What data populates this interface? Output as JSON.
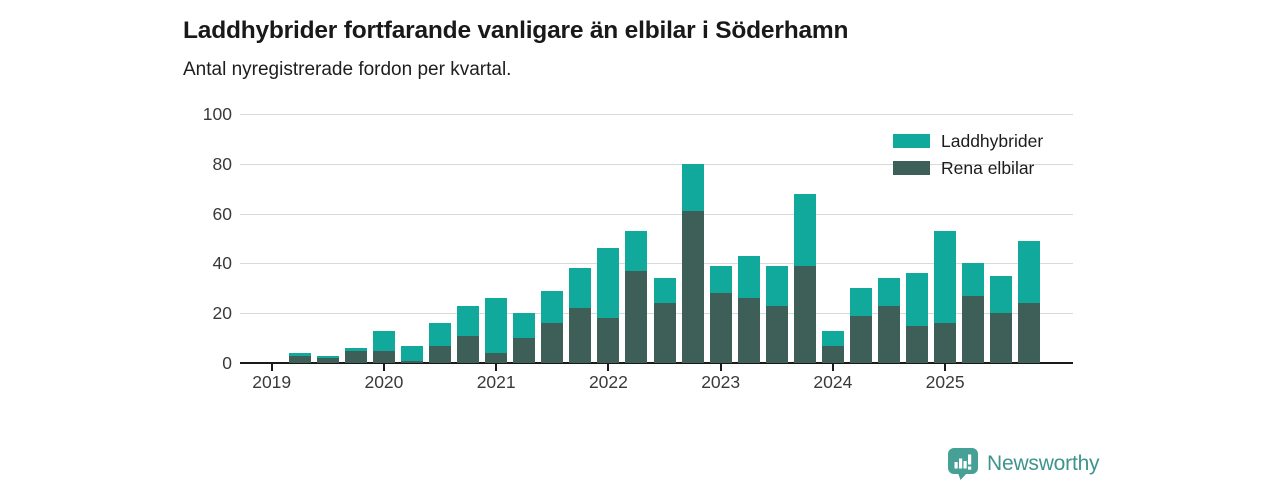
{
  "header": {
    "title": "Laddhybrider fortfarande vanligare än elbilar i Söderhamn",
    "subtitle": "Antal nyregistrerade fordon per kvartal."
  },
  "chart_data": {
    "type": "bar",
    "stacked": true,
    "title": "Laddhybrider fortfarande vanligare än elbilar i Söderhamn",
    "subtitle": "Antal nyregistrerade fordon per kvartal.",
    "categories": [
      "2019 Q1",
      "2019 Q2",
      "2019 Q3",
      "2019 Q4",
      "2020 Q1",
      "2020 Q2",
      "2020 Q3",
      "2020 Q4",
      "2021 Q1",
      "2021 Q2",
      "2021 Q3",
      "2021 Q4",
      "2022 Q1",
      "2022 Q2",
      "2022 Q3",
      "2022 Q4",
      "2023 Q1",
      "2023 Q2",
      "2023 Q3",
      "2023 Q4",
      "2024 Q1",
      "2024 Q2",
      "2024 Q3",
      "2024 Q4",
      "2025 Q1",
      "2025 Q2",
      "2025 Q3",
      "2025 Q4"
    ],
    "series": [
      {
        "name": "Rena elbilar",
        "color": "#3E5F58",
        "values": [
          0,
          3,
          2,
          5,
          5,
          1,
          7,
          11,
          4,
          10,
          16,
          22,
          18,
          37,
          24,
          61,
          28,
          26,
          23,
          39,
          7,
          19,
          23,
          15,
          16,
          27,
          20,
          24
        ]
      },
      {
        "name": "Laddhybrider",
        "color": "#10A99C",
        "values": [
          0,
          1,
          1,
          1,
          8,
          6,
          9,
          12,
          22,
          10,
          13,
          16,
          28,
          16,
          10,
          19,
          11,
          17,
          16,
          29,
          6,
          11,
          11,
          21,
          37,
          13,
          15,
          25
        ]
      }
    ],
    "totals": [
      0,
      4,
      3,
      6,
      13,
      7,
      16,
      23,
      26,
      20,
      29,
      38,
      46,
      53,
      34,
      80,
      39,
      43,
      39,
      68,
      13,
      30,
      34,
      36,
      53,
      40,
      35,
      49
    ],
    "xlabel": "",
    "ylabel": "",
    "ylim": [
      0,
      100
    ],
    "yticks": [
      0,
      20,
      40,
      60,
      80,
      100
    ],
    "xticks": [
      "2019",
      "2020",
      "2021",
      "2022",
      "2023",
      "2024",
      "2025"
    ],
    "grid": true,
    "legend_position": "top-right"
  },
  "legend": {
    "items": [
      {
        "label": "Laddhybrider",
        "color": "#10A99C"
      },
      {
        "label": "Rena elbilar",
        "color": "#3E5F58"
      }
    ]
  },
  "footer": {
    "brand": "Newsworthy"
  },
  "colors": {
    "laddhybrider": "#10A99C",
    "rena_elbilar": "#3E5F58",
    "gridline": "#d9d9d9",
    "axis": "#1a1a1a",
    "brand_teal": "#46A096"
  }
}
